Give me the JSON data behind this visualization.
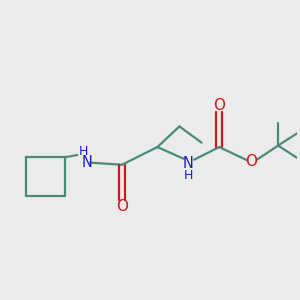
{
  "background_color": "#ebebeb",
  "bond_color": "#4a8a7a",
  "n_color": "#1a1acc",
  "o_color": "#cc1a1a",
  "line_width": 1.6,
  "figsize": [
    3.0,
    3.0
  ],
  "dpi": 100,
  "xlim": [
    0,
    10
  ],
  "ylim": [
    0,
    10
  ]
}
